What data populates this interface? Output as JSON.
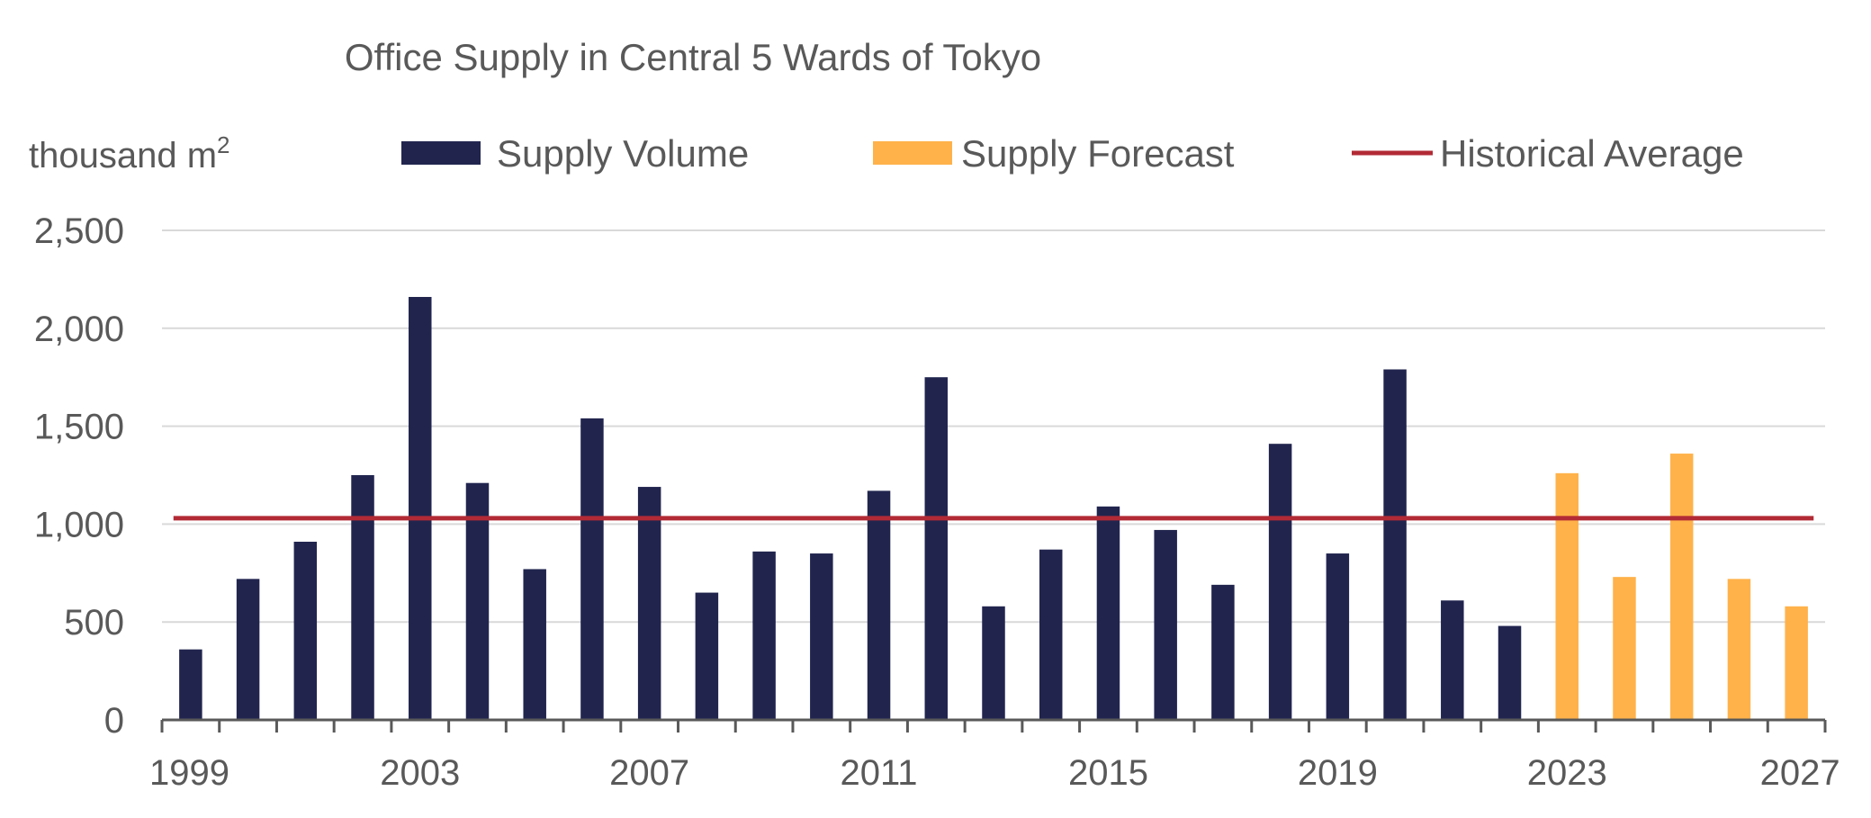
{
  "chart_data": {
    "type": "bar",
    "title": "Office Supply in Central 5 Wards of Tokyo",
    "ylabel": "thousand m",
    "ylabel_superscript": "2",
    "xlabel": "",
    "ylim": [
      0,
      2500
    ],
    "yticks": [
      0,
      500,
      1000,
      1500,
      2000,
      2500
    ],
    "ytick_labels": [
      "0",
      "500",
      "1,000",
      "1,500",
      "2,000",
      "2,500"
    ],
    "xtick_labels": [
      "1999",
      "2003",
      "2007",
      "2011",
      "2015",
      "2019",
      "2023",
      "2027"
    ],
    "grid": true,
    "legend_position": "top",
    "categories": [
      1999,
      2000,
      2001,
      2002,
      2003,
      2004,
      2005,
      2006,
      2007,
      2008,
      2009,
      2010,
      2011,
      2012,
      2013,
      2014,
      2015,
      2016,
      2017,
      2018,
      2019,
      2020,
      2021,
      2022,
      2023,
      2024,
      2025,
      2026,
      2027
    ],
    "series": [
      {
        "name": "Supply Volume",
        "color": "#21254e",
        "values": [
          360,
          720,
          910,
          1250,
          2160,
          1210,
          770,
          1540,
          1190,
          650,
          860,
          850,
          1170,
          1750,
          580,
          870,
          1090,
          970,
          690,
          1410,
          850,
          1790,
          610,
          480,
          null,
          null,
          null,
          null,
          null
        ]
      },
      {
        "name": "Supply Forecast",
        "color": "#ffb24a",
        "values": [
          null,
          null,
          null,
          null,
          null,
          null,
          null,
          null,
          null,
          null,
          null,
          null,
          null,
          null,
          null,
          null,
          null,
          null,
          null,
          null,
          null,
          null,
          null,
          null,
          1260,
          730,
          1360,
          720,
          580
        ]
      }
    ],
    "reference_line": {
      "name": "Historical Average",
      "color": "#b22a35",
      "value": 1030
    },
    "grid_color": "#d9d9d9",
    "axis_color": "#595959"
  }
}
